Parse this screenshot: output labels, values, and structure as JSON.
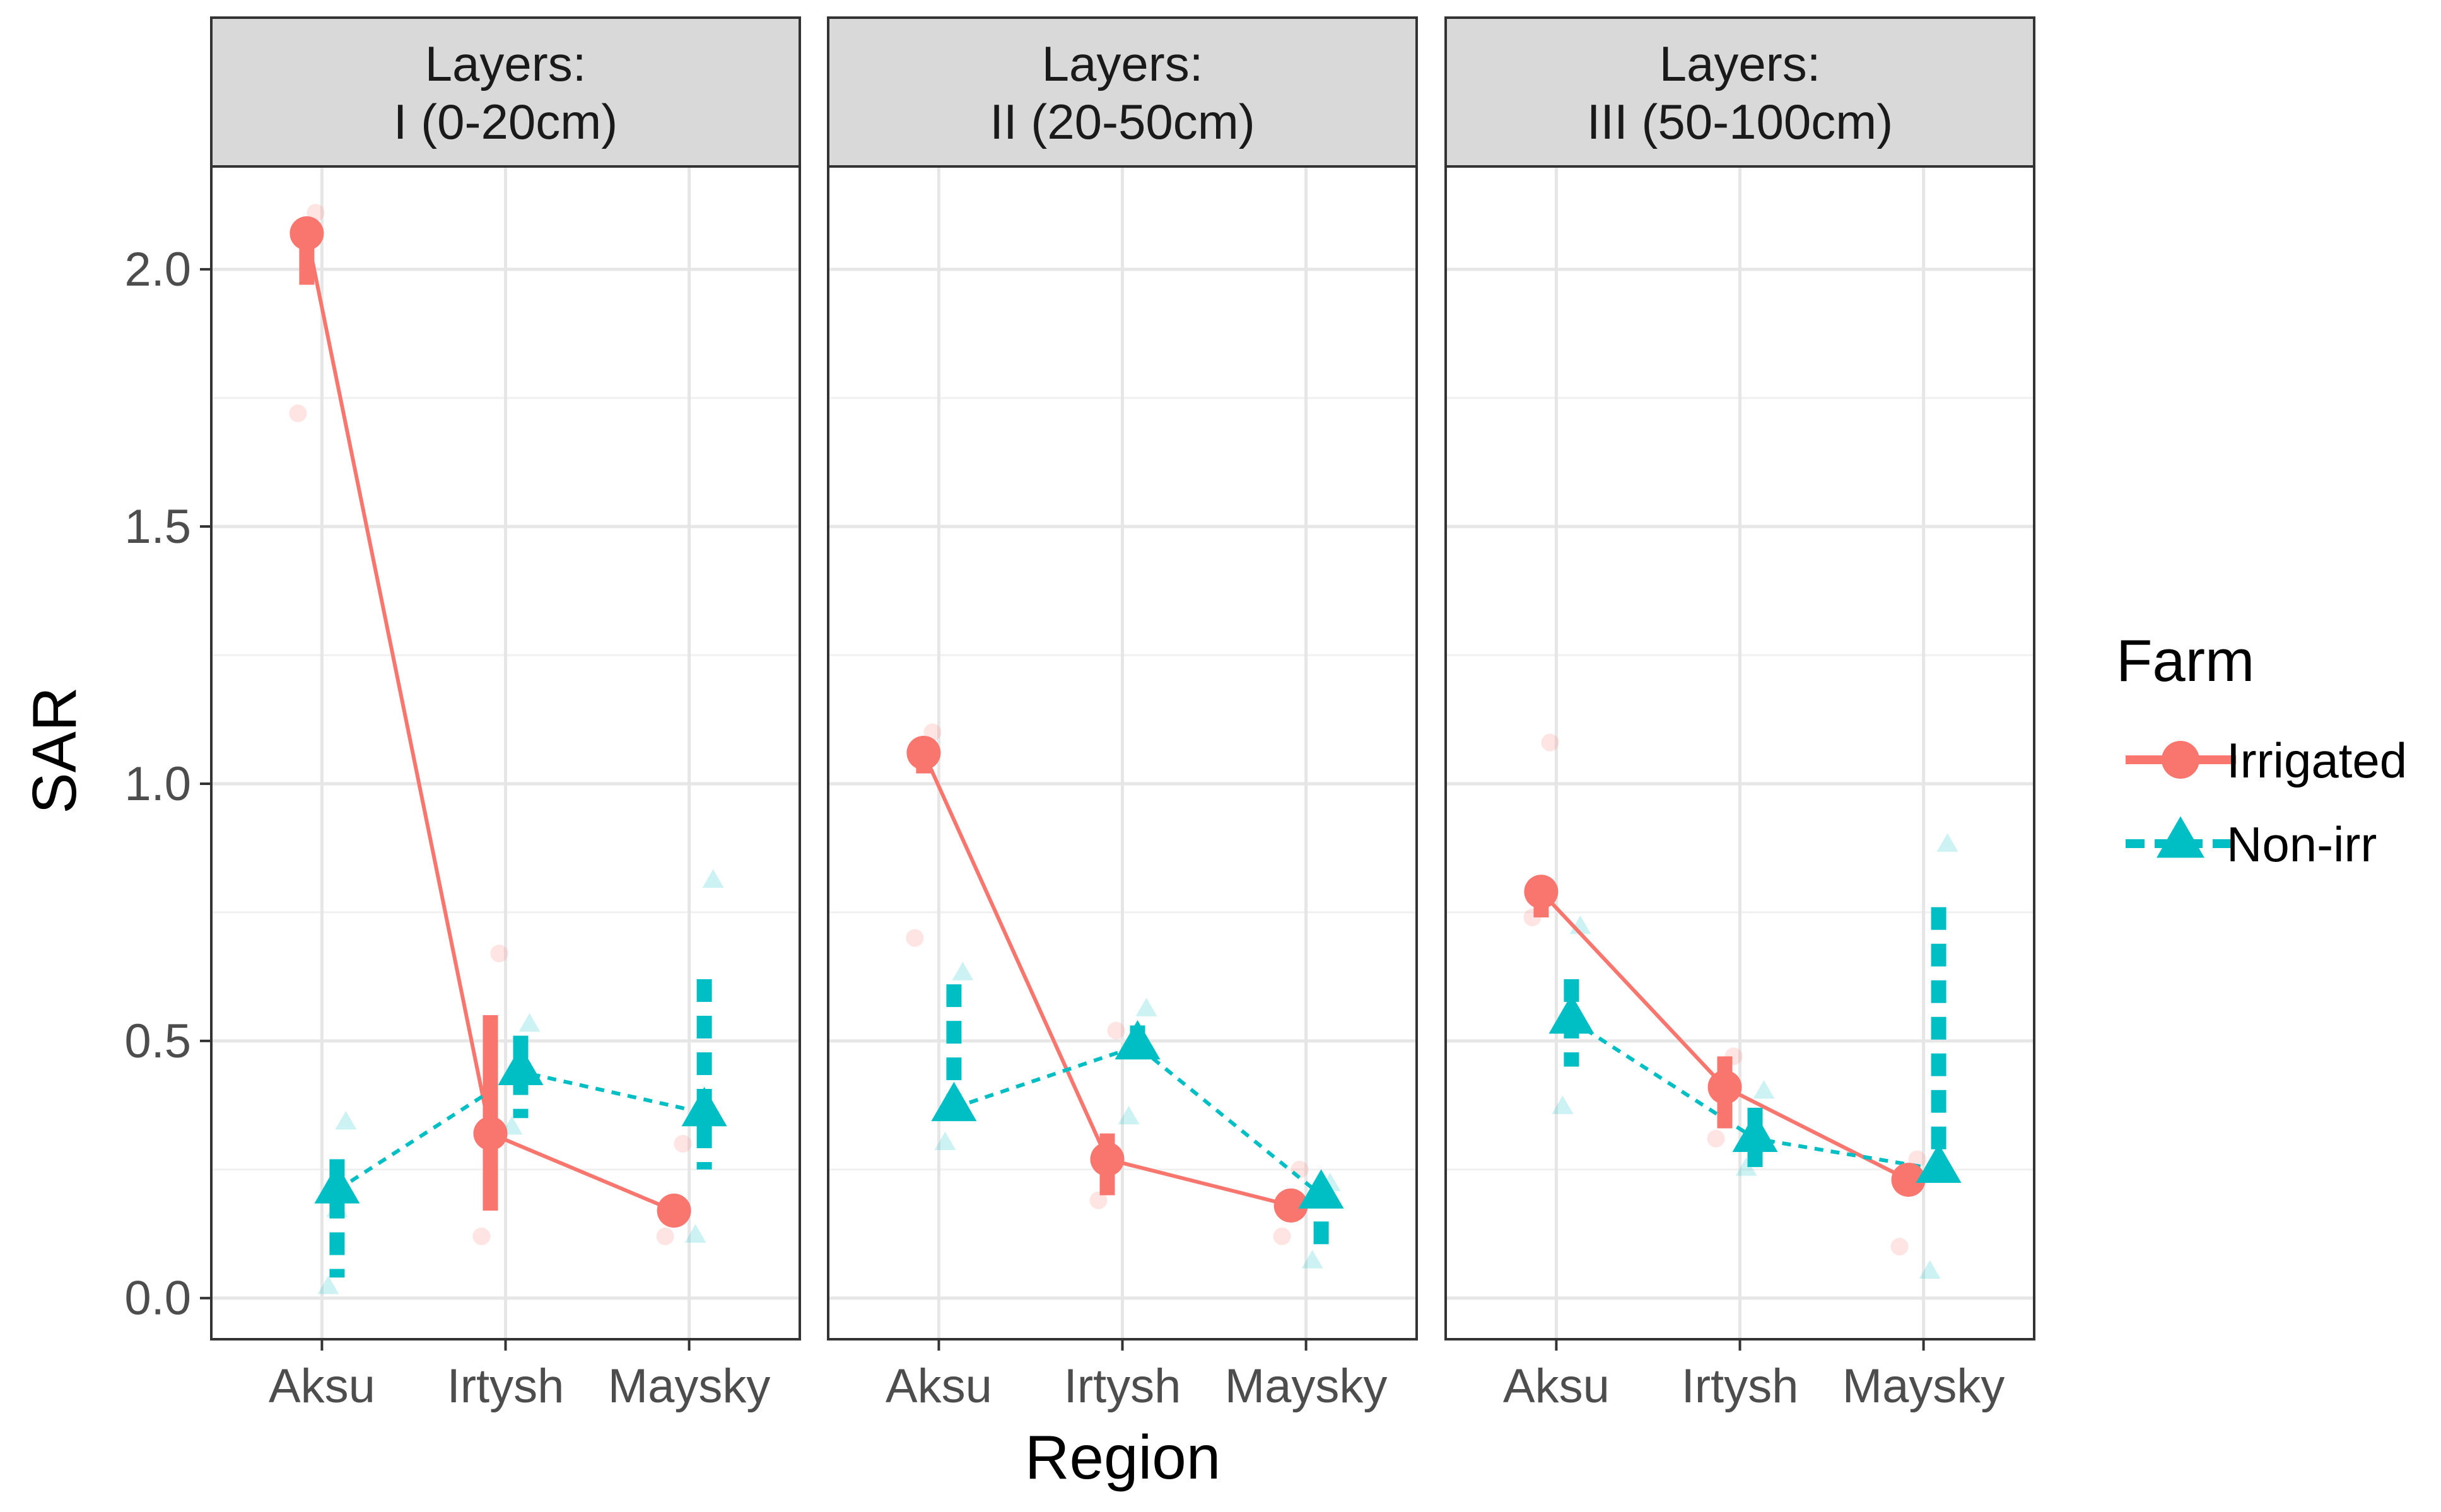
{
  "chart_data": {
    "type": "line",
    "xlabel": "Region",
    "ylabel": "SAR",
    "ylim": [
      -0.08,
      2.2
    ],
    "yticks": [
      "0.0",
      "0.5",
      "1.0",
      "1.5",
      "2.0"
    ],
    "categories": [
      "Aksu",
      "Irtysh",
      "Maysky"
    ],
    "legend": {
      "title": "Farm",
      "position": "right",
      "entries": [
        {
          "label": "Irrigated",
          "color": "#F8766D",
          "shape": "circle",
          "linetype": "solid"
        },
        {
          "label": "Non-irr",
          "color": "#00BFC4",
          "shape": "triangle",
          "linetype": "dashed"
        }
      ]
    },
    "grid": true,
    "panels": [
      {
        "strip": {
          "line1": "Layers:",
          "line2": "I (0-20cm)"
        },
        "series": [
          {
            "farm": "Irrigated",
            "mean": [
              2.07,
              0.32,
              0.17
            ],
            "lower": [
              1.97,
              0.17,
              0.16
            ],
            "upper": [
              2.08,
              0.55,
              0.18
            ],
            "raw": [
              [
                1.72,
                2.08,
                2.11
              ],
              [
                0.12,
                0.32,
                0.67
              ],
              [
                0.12,
                0.17,
                0.3
              ]
            ]
          },
          {
            "farm": "Non-irr",
            "mean": [
              0.21,
              0.44,
              0.36
            ],
            "lower": [
              0.04,
              0.35,
              0.25
            ],
            "upper": [
              0.27,
              0.51,
              0.62
            ],
            "raw": [
              [
                0.02,
                0.17,
                0.34
              ],
              [
                0.33,
                0.45,
                0.53
              ],
              [
                0.12,
                0.35,
                0.81
              ]
            ]
          }
        ]
      },
      {
        "strip": {
          "line1": "Layers:",
          "line2": "II (20-50cm)"
        },
        "series": [
          {
            "farm": "Irrigated",
            "mean": [
              1.06,
              0.27,
              0.18
            ],
            "lower": [
              1.02,
              0.2,
              0.17
            ],
            "upper": [
              1.07,
              0.32,
              0.19
            ],
            "raw": [
              [
                0.7,
                1.05,
                1.1
              ],
              [
                0.19,
                0.28,
                0.52
              ],
              [
                0.12,
                0.18,
                0.25
              ]
            ]
          },
          {
            "farm": "Non-irr",
            "mean": [
              0.37,
              0.49,
              0.2
            ],
            "lower": [
              0.33,
              0.47,
              0.1
            ],
            "upper": [
              0.61,
              0.53,
              0.22
            ],
            "raw": [
              [
                0.3,
                0.38,
                0.63
              ],
              [
                0.35,
                0.5,
                0.56
              ],
              [
                0.07,
                0.2,
                0.22
              ]
            ]
          }
        ]
      },
      {
        "strip": {
          "line1": "Layers:",
          "line2": "III (50-100cm)"
        },
        "series": [
          {
            "farm": "Irrigated",
            "mean": [
              0.79,
              0.41,
              0.23
            ],
            "lower": [
              0.74,
              0.33,
              0.22
            ],
            "upper": [
              0.8,
              0.47,
              0.24
            ],
            "raw": [
              [
                0.74,
                0.78,
                1.08
              ],
              [
                0.31,
                0.4,
                0.47
              ],
              [
                0.1,
                0.23,
                0.27
              ]
            ]
          },
          {
            "farm": "Non-irr",
            "mean": [
              0.54,
              0.31,
              0.25
            ],
            "lower": [
              0.45,
              0.24,
              0.24
            ],
            "upper": [
              0.62,
              0.37,
              0.76
            ],
            "raw": [
              [
                0.37,
                0.55,
                0.72
              ],
              [
                0.25,
                0.32,
                0.4
              ],
              [
                0.05,
                0.25,
                0.88
              ]
            ]
          }
        ]
      }
    ]
  }
}
